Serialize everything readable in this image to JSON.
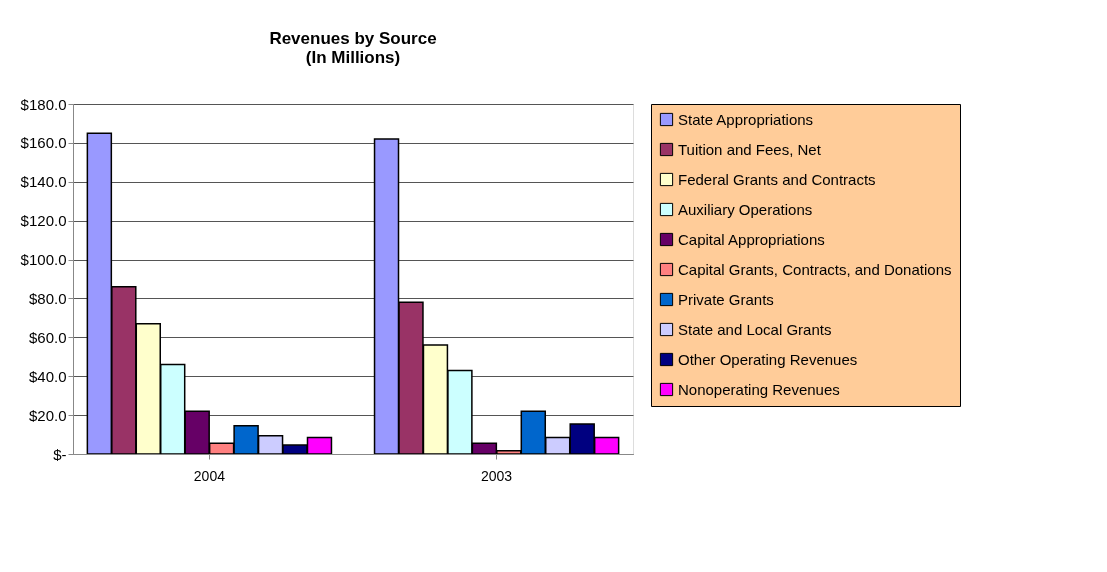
{
  "chart_data": {
    "type": "bar",
    "title": [
      "Revenues by Source",
      "(In Millions)"
    ],
    "categories": [
      "2004",
      "2003"
    ],
    "series": [
      {
        "name": "State Appropriations",
        "color": "#9999ff",
        "values": [
          165,
          162
        ]
      },
      {
        "name": "Tuition and Fees, Net",
        "color": "#993366",
        "values": [
          86,
          78
        ]
      },
      {
        "name": "Federal Grants and Contracts",
        "color": "#ffffcc",
        "values": [
          67,
          56
        ]
      },
      {
        "name": "Auxiliary Operations",
        "color": "#ccffff",
        "values": [
          46,
          43
        ]
      },
      {
        "name": "Capital Appropriations",
        "color": "#660066",
        "values": [
          22,
          5.5
        ]
      },
      {
        "name": "Capital Grants, Contracts, and Donations",
        "color": "#ff8080",
        "values": [
          5.5,
          1.7
        ]
      },
      {
        "name": "Private Grants",
        "color": "#0066cc",
        "values": [
          14.5,
          22
        ]
      },
      {
        "name": "State and Local Grants",
        "color": "#ccccff",
        "values": [
          9.4,
          8.5
        ]
      },
      {
        "name": "Other Operating Revenues",
        "color": "#000080",
        "values": [
          4.6,
          15.4
        ]
      },
      {
        "name": "Nonoperating Revenues",
        "color": "#ff00ff",
        "values": [
          8.5,
          8.5
        ]
      }
    ],
    "ylim": [
      0,
      180
    ],
    "yticks": [
      {
        "value": 0,
        "label": "$-"
      },
      {
        "value": 20,
        "label": "$20.0"
      },
      {
        "value": 40,
        "label": "$40.0"
      },
      {
        "value": 60,
        "label": "$60.0"
      },
      {
        "value": 80,
        "label": "$80.0"
      },
      {
        "value": 100,
        "label": "$100.0"
      },
      {
        "value": 120,
        "label": "$120.0"
      },
      {
        "value": 140,
        "label": "$140.0"
      },
      {
        "value": 160,
        "label": "$160.0"
      },
      {
        "value": 180,
        "label": "$180.0"
      }
    ],
    "grid": "y",
    "legend": "right"
  }
}
